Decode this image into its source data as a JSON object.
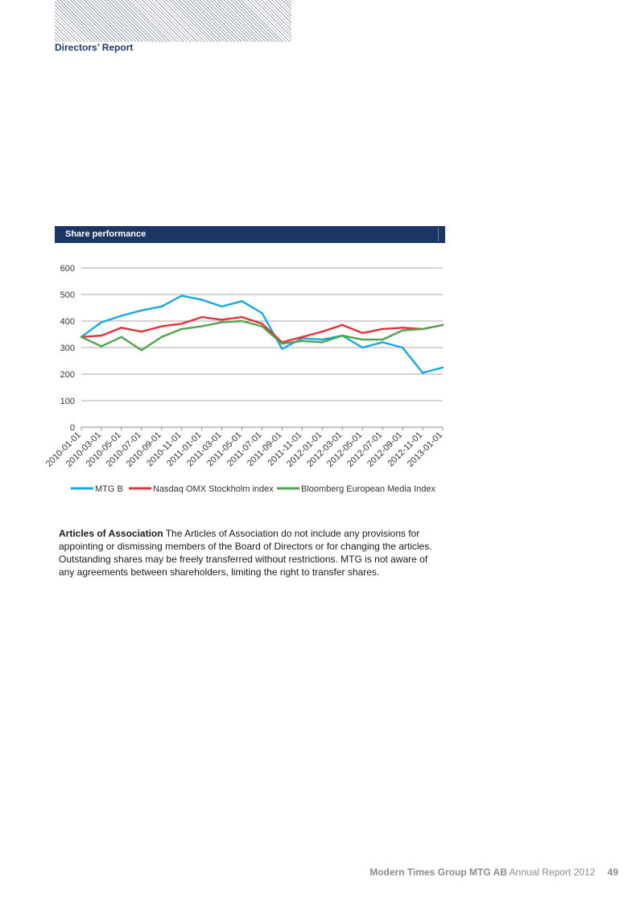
{
  "header": {
    "section": "Directors’ Report"
  },
  "chart_section": {
    "title": "Share performance"
  },
  "chart_data": {
    "type": "line",
    "ylim": [
      0,
      600
    ],
    "yticks": [
      0,
      100,
      200,
      300,
      400,
      500,
      600
    ],
    "x": [
      "2010-01-01",
      "2010-03-01",
      "2010-05-01",
      "2010-07-01",
      "2010-09-01",
      "2010-11-01",
      "2011-01-01",
      "2011-03-01",
      "2011-05-01",
      "2011-07-01",
      "2011-09-01",
      "2011-11-01",
      "2012-01-01",
      "2012-03-01",
      "2012-05-01",
      "2012-07-01",
      "2012-09-01",
      "2012-11-01",
      "2013-01-01"
    ],
    "grid": "horizontal",
    "legend": "bottom",
    "series": [
      {
        "name": "MTG B",
        "color": "#1aa7e0",
        "values": [
          340,
          395,
          420,
          440,
          455,
          495,
          480,
          455,
          475,
          430,
          295,
          335,
          330,
          345,
          300,
          320,
          300,
          205,
          225
        ]
      },
      {
        "name": "Nasdaq OMX Stockholm index",
        "color": "#e2323a",
        "values": [
          340,
          345,
          375,
          360,
          380,
          390,
          415,
          405,
          415,
          390,
          320,
          340,
          360,
          385,
          355,
          370,
          375,
          370,
          385
        ]
      },
      {
        "name": "Bloomberg European Media Index",
        "color": "#4fa44d",
        "values": [
          340,
          305,
          340,
          290,
          340,
          370,
          380,
          395,
          400,
          380,
          315,
          325,
          320,
          345,
          330,
          330,
          365,
          370,
          385
        ]
      }
    ]
  },
  "articles": {
    "heading": "Articles of Association",
    "text": "The Articles of Association do not include any provisions for appointing or dismissing members of the Board of Directors or for changing the articles. Outstanding shares may be freely transferred without restrictions. MTG is not aware of any agreements between shareholders, limiting the right to transfer shares."
  },
  "footer": {
    "company": "Modern Times Group MTG AB",
    "report": "Annual Report 2012",
    "page": "49"
  }
}
